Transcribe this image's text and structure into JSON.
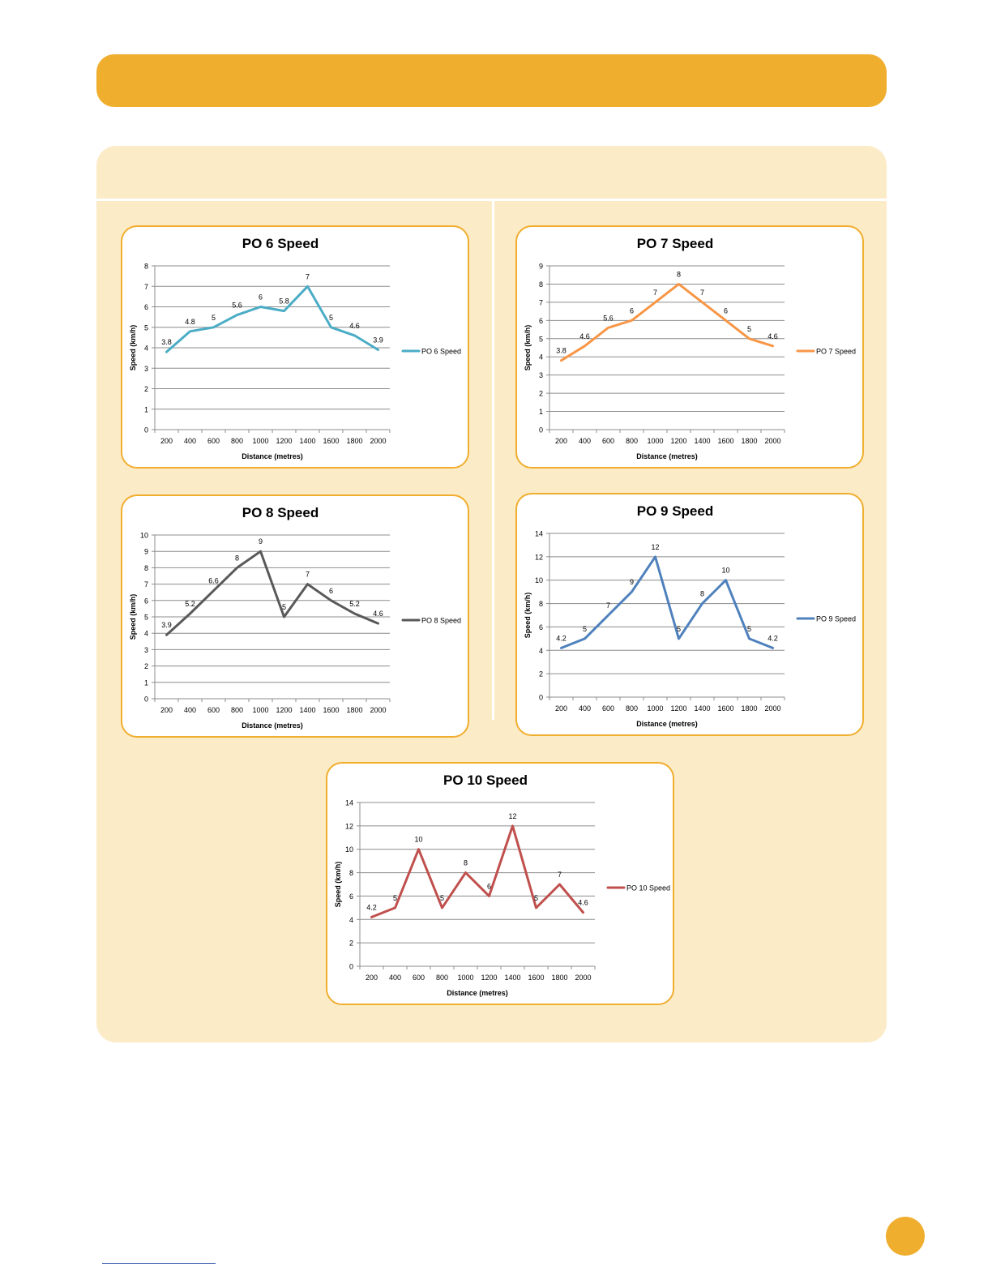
{
  "page": {
    "accent_color": "#F0AE2F",
    "panel_color": "#FCEBC7"
  },
  "chart_data": [
    {
      "id": "po6",
      "type": "line",
      "title": "PO 6 Speed",
      "xlabel": "Distance (metres)",
      "ylabel": "Speed (km/h)",
      "categories": [
        "200",
        "400",
        "600",
        "800",
        "1000",
        "1200",
        "1400",
        "1600",
        "1800",
        "2000"
      ],
      "series": [
        {
          "name": "PO 6 Speed",
          "color": "#4BACC6",
          "values": [
            3.8,
            4.8,
            5,
            5.6,
            6,
            5.8,
            7,
            5,
            4.6,
            3.9
          ]
        }
      ],
      "ylim": [
        0,
        8
      ],
      "ytick_step": 1,
      "grid": true,
      "legend": "right"
    },
    {
      "id": "po7",
      "type": "line",
      "title": "PO 7 Speed",
      "xlabel": "Distance (metres)",
      "ylabel": "Speed (km/h)",
      "categories": [
        "200",
        "400",
        "600",
        "800",
        "1000",
        "1200",
        "1400",
        "1600",
        "1800",
        "2000"
      ],
      "series": [
        {
          "name": "PO 7 Speed",
          "color": "#F79646",
          "values": [
            3.8,
            4.6,
            5.6,
            6,
            7,
            8,
            7,
            6,
            5,
            4.6
          ]
        }
      ],
      "ylim": [
        0,
        9
      ],
      "ytick_step": 1,
      "grid": true,
      "legend": "right"
    },
    {
      "id": "po8",
      "type": "line",
      "title": "PO 8 Speed",
      "xlabel": "Distance (metres)",
      "ylabel": "Speed (km/h)",
      "categories": [
        "200",
        "400",
        "600",
        "800",
        "1000",
        "1200",
        "1400",
        "1600",
        "1800",
        "2000"
      ],
      "series": [
        {
          "name": "PO 8 Speed",
          "color": "#595959",
          "values": [
            3.9,
            5.2,
            6.6,
            8,
            9,
            5,
            7,
            6,
            5.2,
            4.6
          ]
        }
      ],
      "ylim": [
        0,
        10
      ],
      "ytick_step": 1,
      "grid": true,
      "legend": "right"
    },
    {
      "id": "po9",
      "type": "line",
      "title": "PO 9 Speed",
      "xlabel": "Distance (metres)",
      "ylabel": "Speed (km/h)",
      "categories": [
        "200",
        "400",
        "600",
        "800",
        "1000",
        "1200",
        "1400",
        "1600",
        "1800",
        "2000"
      ],
      "series": [
        {
          "name": "PO 9 Speed",
          "color": "#4F81BD",
          "values": [
            4.2,
            5,
            7,
            9,
            12,
            5,
            8,
            10,
            5,
            4.2
          ]
        }
      ],
      "ylim": [
        0,
        14
      ],
      "ytick_step": 2,
      "grid": true,
      "legend": "right"
    },
    {
      "id": "po10",
      "type": "line",
      "title": "PO 10 Speed",
      "xlabel": "Distance (metres)",
      "ylabel": "Speed (km/h)",
      "categories": [
        "200",
        "400",
        "600",
        "800",
        "1000",
        "1200",
        "1400",
        "1600",
        "1800",
        "2000"
      ],
      "series": [
        {
          "name": "PO 10 Speed",
          "color": "#C0504D",
          "values": [
            4.2,
            5,
            10,
            5,
            8,
            6,
            12,
            5,
            7,
            4.6
          ]
        }
      ],
      "ylim": [
        0,
        14
      ],
      "ytick_step": 2,
      "grid": true,
      "legend": "right"
    }
  ]
}
